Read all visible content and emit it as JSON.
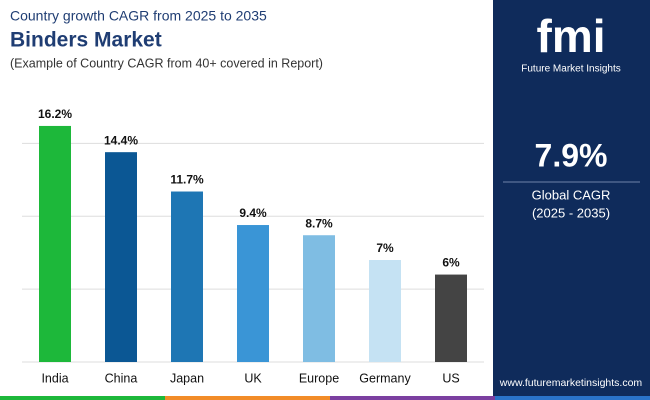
{
  "chart_data": {
    "type": "bar",
    "supertitle": "Country growth CAGR from 2025 to 2035",
    "title": "Binders Market",
    "subtitle": "(Example of Country CAGR from 40+ covered in Report)",
    "categories": [
      "India",
      "China",
      "Japan",
      "UK",
      "Europe",
      "Germany",
      "US"
    ],
    "values": [
      16.2,
      14.4,
      11.7,
      9.4,
      8.7,
      7,
      6
    ],
    "value_labels": [
      "16.2%",
      "14.4%",
      "11.7%",
      "9.4%",
      "8.7%",
      "7%",
      "6%"
    ],
    "colors": [
      "#1db83a",
      "#0b5794",
      "#1e76b4",
      "#3a95d6",
      "#7fbde3",
      "#c5e2f3",
      "#444444"
    ],
    "ylim": [
      0,
      17.5
    ],
    "yticks": [
      0,
      5,
      10,
      15
    ],
    "grid": true
  },
  "brand": {
    "logo": "fmi",
    "name": "Future Market Insights",
    "cagr": "7.9%",
    "cagr_label": "Global CAGR",
    "period": "(2025 - 2035)",
    "website": "www.futuremarketinsights.com"
  }
}
